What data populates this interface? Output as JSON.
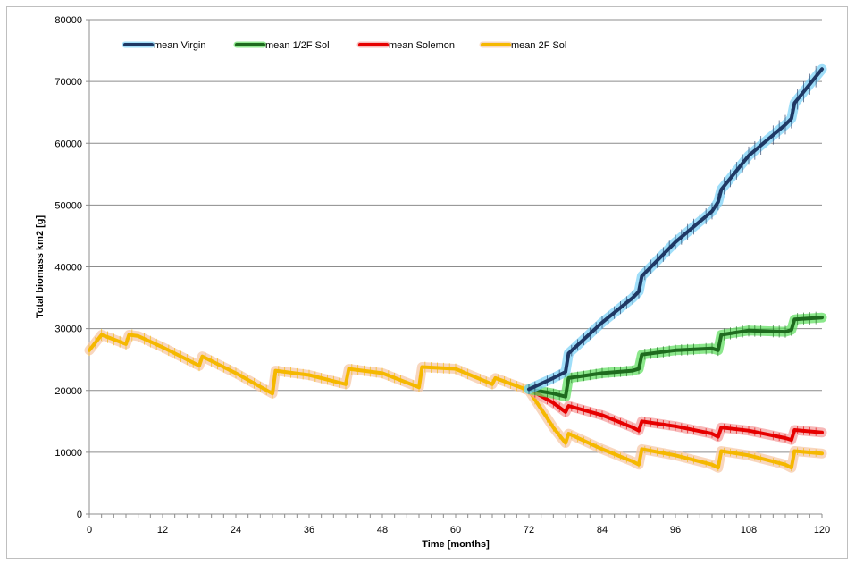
{
  "chart_data": {
    "type": "line",
    "title": "",
    "xlabel": "Time [months]",
    "ylabel": "Total biomass  km2 [g]",
    "xlim": [
      0,
      120
    ],
    "ylim": [
      0,
      80000
    ],
    "xticks": [
      0,
      12,
      24,
      36,
      48,
      60,
      72,
      84,
      96,
      108,
      120
    ],
    "yticks": [
      0,
      10000,
      20000,
      30000,
      40000,
      50000,
      60000,
      70000,
      80000
    ],
    "grid": "horizontal",
    "legend_position": "top-left",
    "series": [
      {
        "name": "mean Virgin",
        "color": "#1f3864",
        "halo": "#7fd3f7",
        "x": [
          72,
          76,
          78,
          78.5,
          84,
          89,
          90,
          90.5,
          96,
          102,
          103,
          103.5,
          108,
          114,
          115,
          115.5,
          120
        ],
        "y": [
          20200,
          22000,
          23000,
          26000,
          31000,
          35000,
          36000,
          38500,
          44000,
          49000,
          50500,
          52500,
          58000,
          63000,
          64000,
          66500,
          72000
        ]
      },
      {
        "name": "mean 1/2F Sol",
        "color": "#1e6b1e",
        "halo": "#66e066",
        "x": [
          72,
          76,
          78,
          78.5,
          84,
          89,
          90,
          90.5,
          96,
          102,
          103,
          103.5,
          108,
          114,
          115,
          115.5,
          120
        ],
        "y": [
          20200,
          19500,
          19000,
          22000,
          22800,
          23200,
          23500,
          25800,
          26500,
          26800,
          26500,
          29000,
          29700,
          29500,
          29800,
          31500,
          31800
        ]
      },
      {
        "name": "mean Solemon",
        "color": "#e60000",
        "halo": "#f4a0a0",
        "x": [
          72,
          76,
          78,
          78.5,
          84,
          89,
          90,
          90.5,
          96,
          102,
          103,
          103.5,
          108,
          114,
          115,
          115.5,
          120
        ],
        "y": [
          20200,
          18000,
          16500,
          17500,
          16000,
          14000,
          13500,
          15000,
          14200,
          13000,
          12500,
          14000,
          13500,
          12300,
          12000,
          13600,
          13200
        ]
      },
      {
        "name": "mean 2F Sol",
        "color": "#f5b800",
        "halo": "#f5c8a8",
        "x": [
          0,
          2,
          6,
          6.5,
          8,
          12,
          18,
          18.5,
          24,
          30,
          30.5,
          36,
          42,
          42.5,
          48,
          54,
          54.5,
          60,
          66,
          66.5,
          72,
          74,
          76,
          78,
          78.5,
          84,
          89,
          90,
          90.5,
          96,
          102,
          103,
          103.5,
          108,
          114,
          115,
          115.5,
          120
        ],
        "y": [
          26500,
          29000,
          27500,
          29000,
          28800,
          27000,
          24000,
          25500,
          22800,
          19500,
          23200,
          22500,
          21000,
          23500,
          22800,
          20500,
          23800,
          23500,
          21000,
          22000,
          20000,
          17000,
          14000,
          11500,
          13000,
          10500,
          8500,
          8000,
          10500,
          9500,
          8000,
          7500,
          10200,
          9500,
          8000,
          7500,
          10200,
          9800
        ]
      }
    ]
  }
}
